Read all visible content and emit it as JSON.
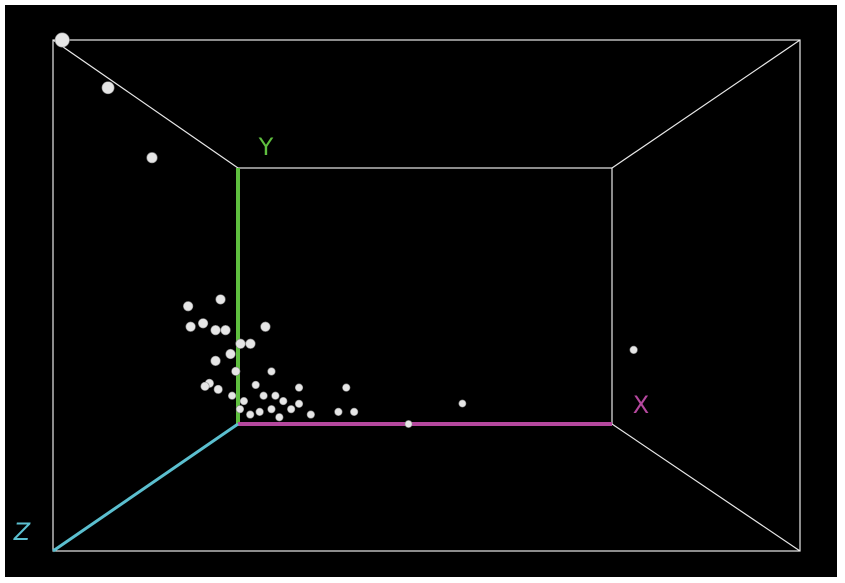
{
  "chart_data": {
    "type": "scatter3d",
    "x_label": "X",
    "y_label": "Y",
    "z_label": "Z",
    "xlim": [
      0,
      1
    ],
    "ylim": [
      0,
      1
    ],
    "zlim": [
      0,
      1
    ],
    "color": "#e6e6e6",
    "x": [
      0.015,
      0.0,
      0.0,
      0.025,
      0.03,
      0.09,
      0.055,
      0.18,
      0.08,
      0.13,
      0.15,
      0.11,
      0.08,
      0.1,
      0.03,
      0.056,
      0.08,
      0.11,
      0.04,
      0.01,
      0.01,
      0.03,
      0.0,
      0.13,
      0.16,
      0.18,
      0.11,
      0.07,
      0.21,
      0.28,
      0.3,
      0.32,
      0.456,
      0.6,
      1.03,
      0.07,
      0.09,
      0.12,
      0.14,
      0.18
    ],
    "y": [
      1.0,
      0.98,
      0.87,
      0.47,
      0.41,
      0.49,
      0.42,
      0.41,
      0.4,
      0.36,
      0.36,
      0.33,
      0.31,
      0.4,
      0.08,
      0.06,
      0.07,
      0.08,
      0.11,
      0.13,
      0.21,
      0.19,
      0.2,
      0.05,
      0.08,
      0.16,
      0.22,
      0.17,
      0.06,
      0.07,
      0.16,
      0.07,
      0.0,
      0.08,
      0.3,
      0.25,
      0.13,
      0.13,
      0.11,
      0.1
    ],
    "z": [
      1.0,
      0.82,
      0.63,
      0.5,
      0.5,
      0.5,
      0.5,
      0.5,
      0.5,
      0.5,
      0.5,
      0.5,
      0.5,
      0.5,
      0.1,
      0.1,
      0.1,
      0.1,
      0.1,
      0.1,
      0.3,
      0.3,
      0.3,
      0.1,
      0.1,
      0.1,
      0.1,
      0.1,
      0.1,
      0.1,
      0.1,
      0.1,
      0.0,
      0.0,
      0.1,
      0.3,
      0.1,
      0.1,
      0.1,
      0.1
    ]
  }
}
